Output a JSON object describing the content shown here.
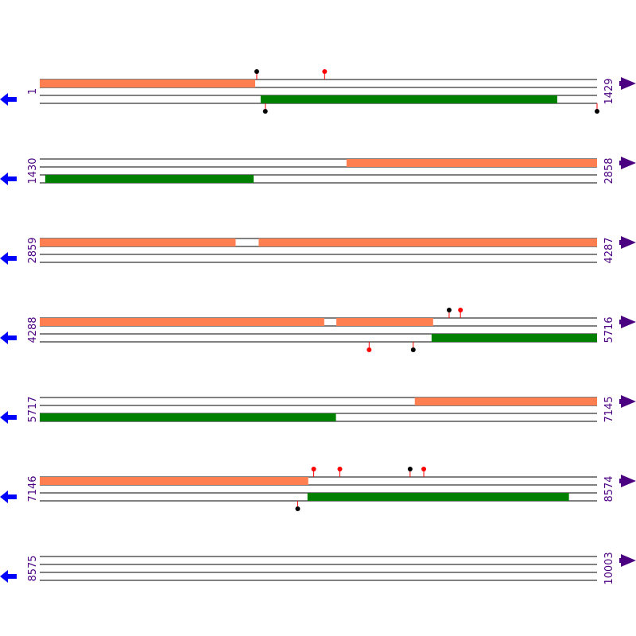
{
  "colors": {
    "track": "#000000",
    "forward_feature": "#ff7f50",
    "reverse_feature": "#008000",
    "left_arrow": "#0000ff",
    "right_arrow": "#4b0082",
    "label": "#4b0082",
    "marker_red": "#ff0000",
    "marker_black": "#000000"
  },
  "icons": {
    "left": "arrow-left-icon",
    "right": "arrow-right-icon"
  },
  "rows": [
    {
      "start_label": "1",
      "end_label": "1429",
      "start": 1,
      "end": 1429,
      "top_features": [
        [
          1,
          553
        ]
      ],
      "bottom_features": [
        [
          567,
          1327
        ]
      ],
      "top_markers": [
        {
          "pos": 557,
          "color": "black"
        },
        {
          "pos": 731,
          "color": "red"
        }
      ],
      "bottom_markers": [
        {
          "pos": 579,
          "color": "black"
        },
        {
          "pos": 1429,
          "color": "black"
        }
      ]
    },
    {
      "start_label": "1430",
      "end_label": "2858",
      "start": 1430,
      "end": 2858,
      "top_features": [
        [
          2216,
          2858
        ]
      ],
      "bottom_features": [
        [
          1444,
          1978
        ]
      ],
      "top_markers": [],
      "bottom_markers": []
    },
    {
      "start_label": "2859",
      "end_label": "4287",
      "start": 2859,
      "end": 4287,
      "top_features": [
        [
          2859,
          3361
        ],
        [
          3420,
          4287
        ]
      ],
      "bottom_features": [],
      "top_markers": [],
      "bottom_markers": []
    },
    {
      "start_label": "4288",
      "end_label": "5716",
      "start": 4288,
      "end": 5716,
      "top_features": [
        [
          4288,
          5017
        ],
        [
          5048,
          5296
        ]
      ],
      "bottom_features": [
        [
          5292,
          5716
        ]
      ],
      "top_markers": [
        {
          "pos": 5337,
          "color": "black"
        },
        {
          "pos": 5366,
          "color": "red"
        }
      ],
      "bottom_markers": [
        {
          "pos": 5132,
          "color": "red"
        },
        {
          "pos": 5245,
          "color": "black"
        }
      ]
    },
    {
      "start_label": "5717",
      "end_label": "7145",
      "start": 5717,
      "end": 7145,
      "top_features": [
        [
          6678,
          7145
        ]
      ],
      "bottom_features": [
        [
          5717,
          6476
        ]
      ],
      "top_markers": [],
      "bottom_markers": []
    },
    {
      "start_label": "7146",
      "end_label": "8574",
      "start": 7146,
      "end": 8574,
      "top_features": [
        [
          7146,
          7834
        ]
      ],
      "bottom_features": [
        [
          7832,
          8502
        ]
      ],
      "top_markers": [
        {
          "pos": 7848,
          "color": "red"
        },
        {
          "pos": 7915,
          "color": "red"
        },
        {
          "pos": 8095,
          "color": "black"
        },
        {
          "pos": 8130,
          "color": "red"
        }
      ],
      "bottom_markers": [
        {
          "pos": 7807,
          "color": "black"
        }
      ]
    },
    {
      "start_label": "8575",
      "end_label": "10003",
      "start": 8575,
      "end": 10003,
      "top_features": [],
      "bottom_features": [],
      "top_markers": [],
      "bottom_markers": []
    }
  ]
}
